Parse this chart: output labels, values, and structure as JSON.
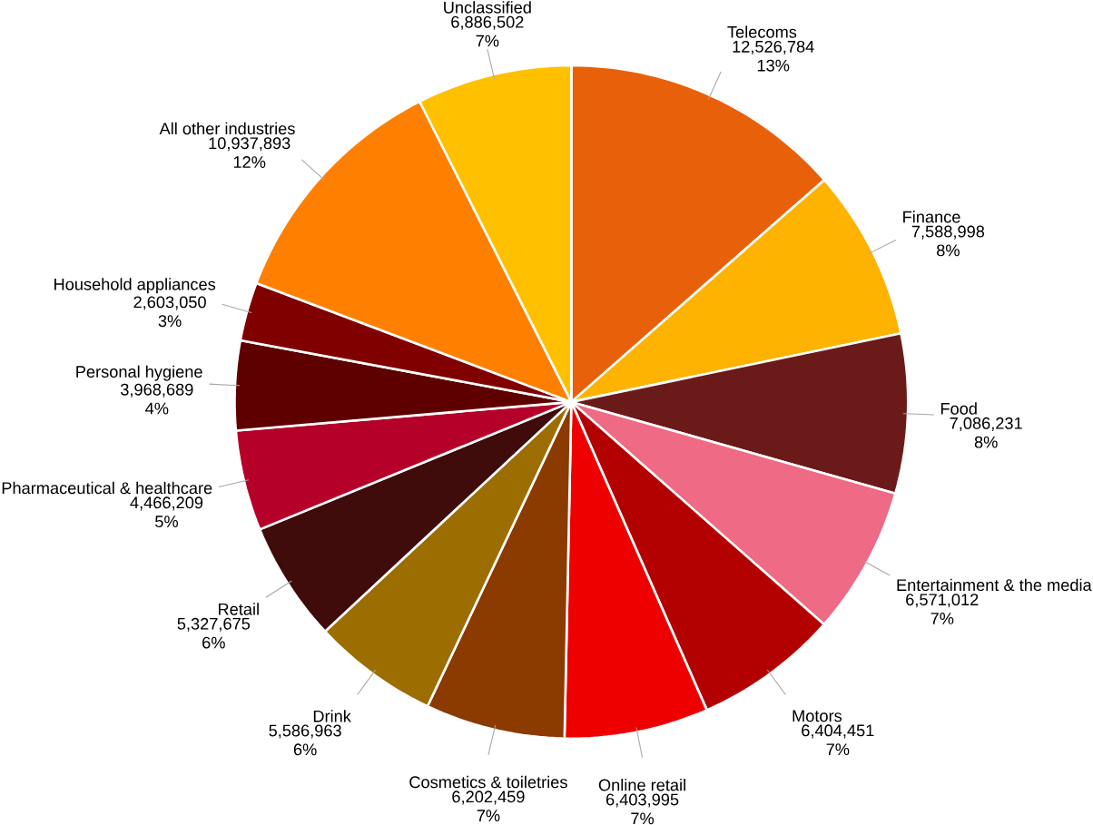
{
  "chart_data": {
    "type": "pie",
    "categories": [
      "Telecoms",
      "Finance",
      "Food",
      "Entertainment & the media",
      "Motors",
      "Online retail",
      "Cosmetics & toiletries",
      "Drink",
      "Retail",
      "Pharmaceutical & healthcare",
      "Personal hygiene",
      "Household appliances",
      "All other industries",
      "Unclassified"
    ],
    "values": [
      12526784,
      7588998,
      7086231,
      6571012,
      6404451,
      6403995,
      6202459,
      5586963,
      5327675,
      4466209,
      3968689,
      2603050,
      10937893,
      6886502
    ],
    "value_labels": [
      "12,526,784 13%",
      "7,588,998 8%",
      "7,086,231 8%",
      "6,571,012 7%",
      "6,404,451 7%",
      "6,403,995 7%",
      "6,202,459 7%",
      "5,586,963 6%",
      "5,327,675 6%",
      "4,466,209 5%",
      "3,968,689 4%",
      "2,603,050 3%",
      "10,937,893 12%",
      "6,886,502 7%"
    ],
    "colors": [
      "#e8600a",
      "#fdb300",
      "#6b1a1a",
      "#ee6a85",
      "#b30000",
      "#ee0000",
      "#8b3a00",
      "#9c6d00",
      "#3f0b0b",
      "#b5002a",
      "#5e0000",
      "#800000",
      "#ff8000",
      "#ffc000"
    ]
  }
}
